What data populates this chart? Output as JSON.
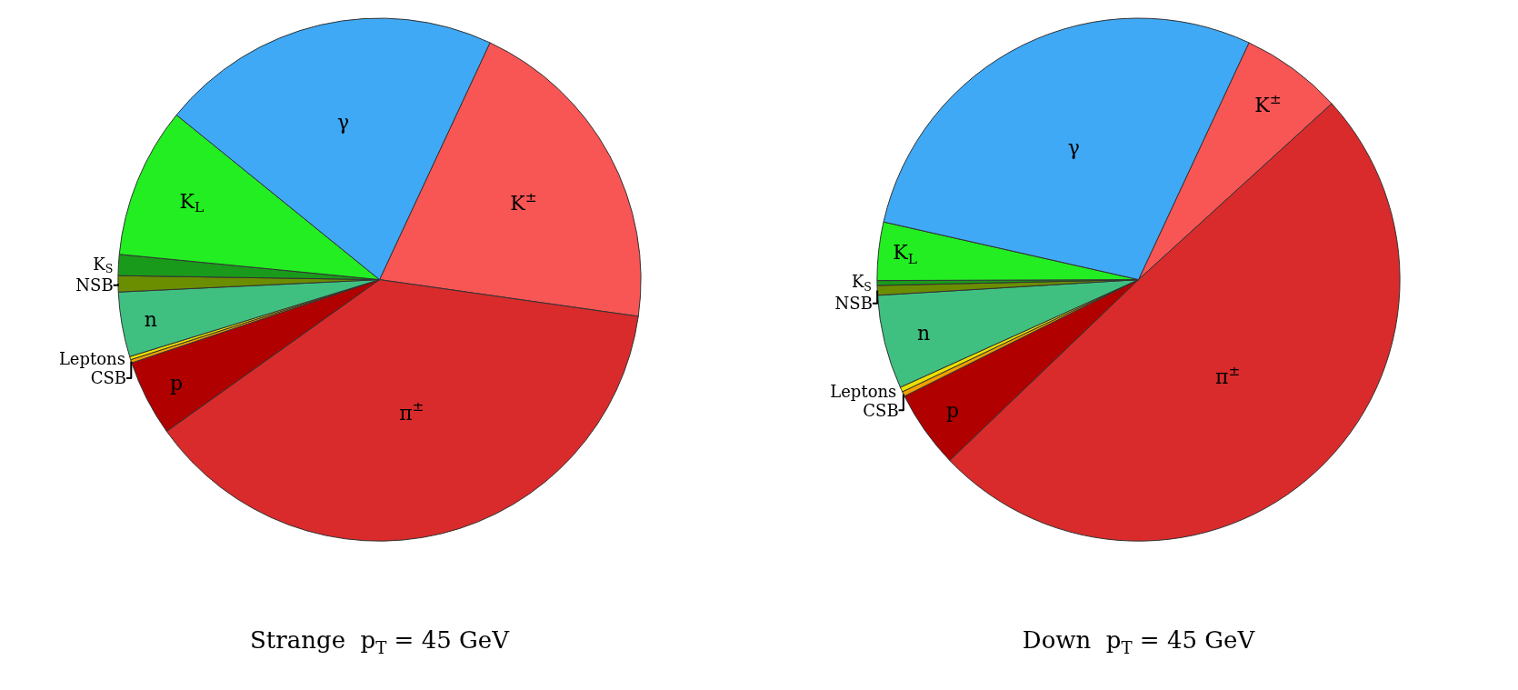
{
  "chart_data": [
    {
      "type": "pie",
      "title": "Strange  p$_{T}$ = 45 GeV",
      "legend": false,
      "categories": [
        "K$^{±}$",
        "π$^{±}$",
        "p",
        "CSB",
        "Leptons",
        "n",
        "NSB",
        "K$_{S}$",
        "K$_{L}$",
        "γ"
      ],
      "values": [
        20.3,
        37.9,
        4.7,
        0.2,
        0.2,
        4.0,
        1.0,
        1.3,
        9.3,
        21.1
      ],
      "colors": [
        "#f85555",
        "#d92b2b",
        "#b00000",
        "#f0a000",
        "#e8e000",
        "#40c080",
        "#6b8e00",
        "#1a9a1a",
        "#22ee22",
        "#3fa9f5"
      ]
    },
    {
      "type": "pie",
      "title": "Down  p$_{T}$ = 45 GeV",
      "legend": false,
      "categories": [
        "K$^{±}$",
        "π$^{±}$",
        "p",
        "CSB",
        "Leptons",
        "n",
        "NSB",
        "K$_{S}$",
        "K$_{L}$",
        "γ"
      ],
      "values": [
        6.3,
        49.6,
        4.8,
        0.3,
        0.3,
        5.8,
        0.6,
        0.3,
        3.6,
        28.4
      ],
      "colors": [
        "#f85555",
        "#d92b2b",
        "#b00000",
        "#f0a000",
        "#e8e000",
        "#40c080",
        "#6b8e00",
        "#1a9a1a",
        "#22ee22",
        "#3fa9f5"
      ]
    }
  ]
}
